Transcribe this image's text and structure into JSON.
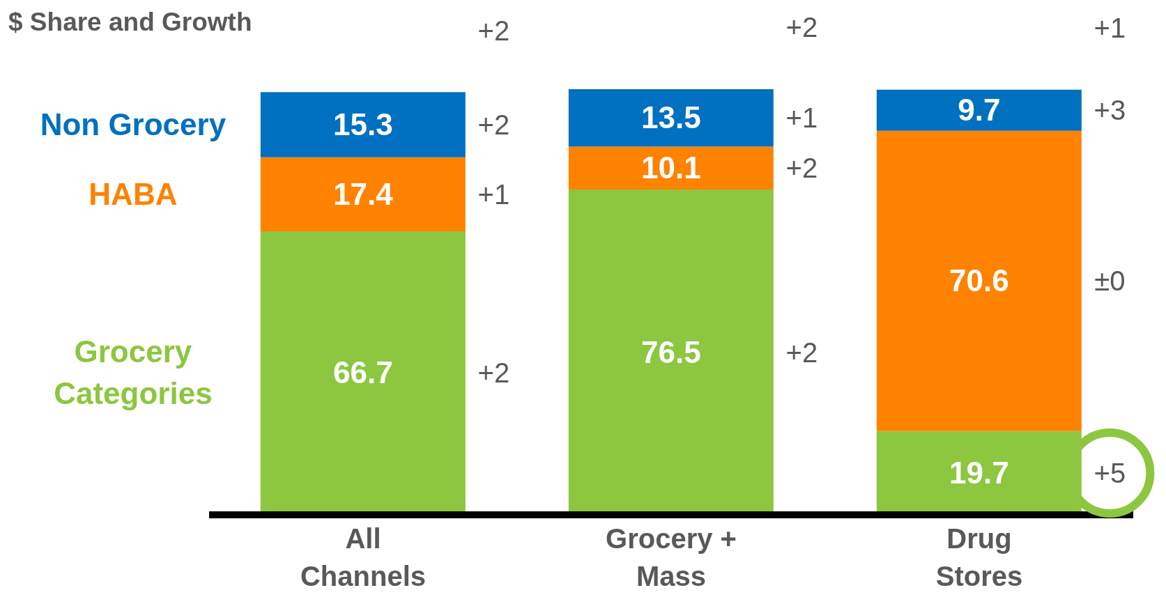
{
  "chart_data": {
    "type": "bar",
    "title": "$ Share and Growth",
    "categories": [
      "All Channels",
      "Grocery + Mass",
      "Drug Stores"
    ],
    "series": [
      {
        "name": "Grocery Categories",
        "color": "#8dc63f",
        "values": [
          66.7,
          76.5,
          19.7
        ]
      },
      {
        "name": "HABA",
        "color": "#ff8200",
        "values": [
          17.4,
          10.1,
          70.6
        ]
      },
      {
        "name": "Non Grocery",
        "color": "#0070c0",
        "values": [
          15.3,
          13.5,
          9.7
        ]
      }
    ],
    "stacked": true,
    "data_labels": true,
    "legend": "left",
    "annotations": [
      "+2",
      "+2",
      "+1",
      "+2",
      "+2",
      "+1",
      "+2",
      "+2",
      "+1",
      "+3",
      "±0",
      "+5"
    ]
  }
}
